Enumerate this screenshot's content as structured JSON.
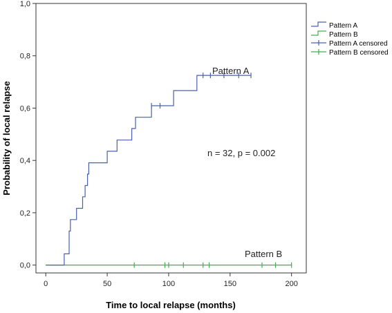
{
  "chart_data": {
    "type": "line",
    "title": "",
    "xlabel": "Time to local relapse (months)",
    "ylabel": "Probability of local relapse",
    "xlim": [
      -8,
      212
    ],
    "ylim": [
      -0.03,
      1.0
    ],
    "x_ticks": [
      0,
      50,
      100,
      150,
      200
    ],
    "y_ticks": [
      0.0,
      0.2,
      0.4,
      0.6,
      0.8,
      1.0
    ],
    "x_tick_labels": [
      "0",
      "50",
      "100",
      "150",
      "200"
    ],
    "y_tick_labels": [
      "0,0",
      "0,2",
      "0,4",
      "0,6",
      "0,8",
      "1,0"
    ],
    "grid": false,
    "legend_position": "right",
    "series": [
      {
        "name": "Pattern A",
        "color": "#4a5fb0",
        "step": [
          [
            0,
            0
          ],
          [
            15,
            0
          ],
          [
            15,
            0.043
          ],
          [
            19,
            0.043
          ],
          [
            19,
            0.13
          ],
          [
            20,
            0.13
          ],
          [
            20,
            0.174
          ],
          [
            25,
            0.174
          ],
          [
            25,
            0.217
          ],
          [
            30,
            0.217
          ],
          [
            30,
            0.261
          ],
          [
            32,
            0.261
          ],
          [
            32,
            0.304
          ],
          [
            34,
            0.304
          ],
          [
            34,
            0.348
          ],
          [
            35,
            0.348
          ],
          [
            35,
            0.391
          ],
          [
            50,
            0.391
          ],
          [
            50,
            0.435
          ],
          [
            58,
            0.435
          ],
          [
            58,
            0.478
          ],
          [
            70,
            0.478
          ],
          [
            70,
            0.522
          ],
          [
            73,
            0.522
          ],
          [
            73,
            0.565
          ],
          [
            86,
            0.565
          ],
          [
            86,
            0.609
          ],
          [
            104,
            0.609
          ],
          [
            104,
            0.667
          ],
          [
            123,
            0.667
          ],
          [
            123,
            0.725
          ],
          [
            167,
            0.725
          ]
        ],
        "censored": [
          86,
          93,
          128,
          134,
          145,
          157,
          167
        ]
      },
      {
        "name": "Pattern B",
        "color": "#3fae49",
        "step": [
          [
            0,
            0
          ],
          [
            200,
            0
          ]
        ],
        "censored": [
          72,
          97,
          100,
          112,
          128,
          133,
          176,
          187,
          200
        ]
      }
    ],
    "legend": [
      "Pattern A",
      "Pattern B",
      "Pattern A censored",
      "Pattern B censored"
    ],
    "annotations": [
      "Pattern A",
      "Pattern B",
      "n = 32, p = 0.002"
    ]
  }
}
